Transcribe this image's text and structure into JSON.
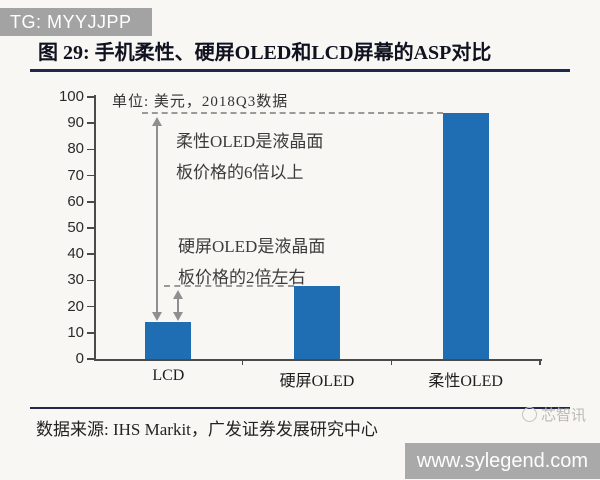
{
  "overlay": {
    "tg_badge": "TG: MYYJJPP",
    "site_watermark": "www.sylegend.com",
    "brand_watermark": "芯智讯"
  },
  "figure": {
    "title": "图 29: 手机柔性、硬屏OLED和LCD屏幕的ASP对比",
    "source": "数据来源: IHS Markit，广发证券发展研究中心"
  },
  "chart_data": {
    "type": "bar",
    "title": "手机柔性、硬屏OLED和LCD屏幕的ASP对比",
    "unit_note": "单位: 美元，2018Q3数据",
    "categories": [
      "LCD",
      "硬屏OLED",
      "柔性OLED"
    ],
    "values": [
      14,
      28,
      94
    ],
    "ylim": [
      0,
      100
    ],
    "ytick_step": 10,
    "xlabel": "",
    "ylabel": "",
    "grid": false,
    "legend": "none",
    "annotations": [
      {
        "text": "柔性OLED是液晶面板价格的6倍以上",
        "lines": [
          "柔性OLED是液晶面",
          "板价格的6倍以上"
        ]
      },
      {
        "text": "硬屏OLED是液晶面板价格的2倍左右",
        "lines": [
          "硬屏OLED是液晶面",
          "板价格的2倍左右"
        ]
      }
    ],
    "colors": {
      "bar": "#1F6DB2",
      "axis": "#4a4a4a",
      "accent_rule": "#1d2a4d",
      "dashed_guide": "#9a9a9a",
      "arrow": "#8f8f8f"
    }
  }
}
